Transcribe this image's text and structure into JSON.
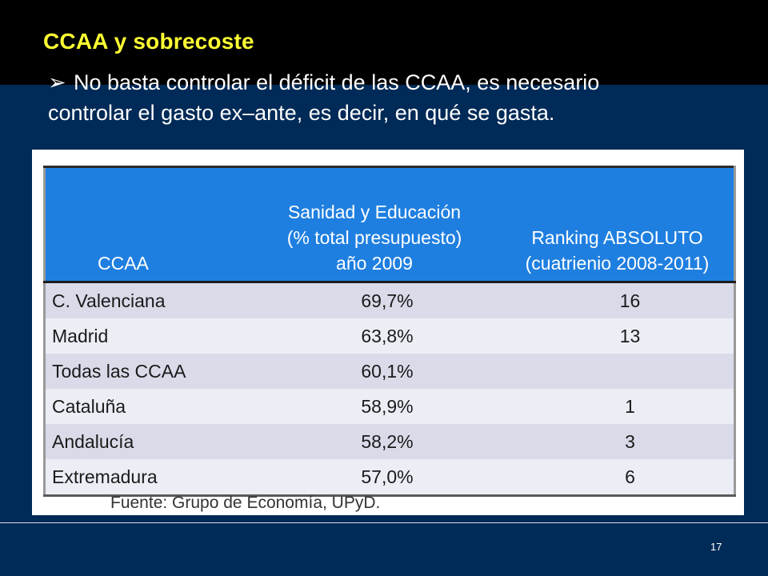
{
  "slide": {
    "title": "CCAA y sobrecoste",
    "bullet_marker": "➢",
    "bullet_line1": "No basta controlar el déficit de las CCAA, es necesario",
    "bullet_line2": "controlar el gasto ex–ante, es decir, en qué se gasta.",
    "page_number": "17"
  },
  "table": {
    "headers": {
      "col1": "CCAA",
      "col2_l1": "Sanidad y Educación",
      "col2_l2": "(% total presupuesto)",
      "col2_l3": "año 2009",
      "col3_l1": "Ranking ABSOLUTO",
      "col3_l2": "(cuatrienio 2008-2011)"
    },
    "rows": [
      {
        "ccaa": "C. Valenciana",
        "pct": "69,7%",
        "rank": "16"
      },
      {
        "ccaa": "Madrid",
        "pct": "63,8%",
        "rank": "13"
      },
      {
        "ccaa": "Todas las CCAA",
        "pct": "60,1%",
        "rank": ""
      },
      {
        "ccaa": "Cataluña",
        "pct": "58,9%",
        "rank": "1"
      },
      {
        "ccaa": "Andalucía",
        "pct": "58,2%",
        "rank": "3"
      },
      {
        "ccaa": "Extremadura",
        "pct": "57,0%",
        "rank": "6"
      }
    ],
    "source": "Fuente: Grupo de Economía, UPyD."
  },
  "colors": {
    "background": "#002a57",
    "top_band": "#000000",
    "title": "#ffff33",
    "header_fill": "#1f7fe0"
  }
}
